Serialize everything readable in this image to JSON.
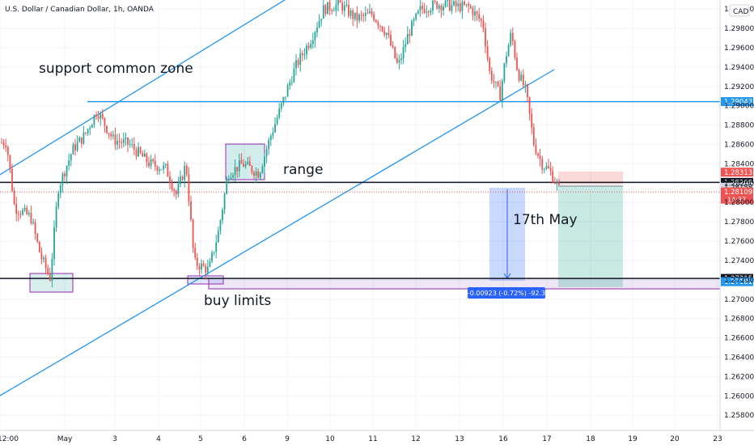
{
  "chart_data": {
    "type": "candlestick",
    "symbol_title": "U.S. Dollar / Canadian Dollar, 1h, OANDA",
    "currency_label": "CAD",
    "ylim": [
      1.2576,
      1.3006
    ],
    "y_ticks": [
      "1.25800",
      "1.26000",
      "1.26200",
      "1.26400",
      "1.26600",
      "1.26800",
      "1.27000",
      "1.27200",
      "1.27400",
      "1.27600",
      "1.27800",
      "1.28000",
      "1.28200",
      "1.28400",
      "1.28600",
      "1.28800",
      "1.29000",
      "1.29200",
      "1.29400",
      "1.29600",
      "1.29800",
      "1.30000"
    ],
    "x_ticks": [
      "12:00",
      "May",
      "3",
      "4",
      "5",
      "6",
      "9",
      "10",
      "11",
      "12",
      "13",
      "16",
      "17",
      "18",
      "19",
      "20",
      "23"
    ],
    "price_tags": [
      {
        "label": "1.29043",
        "value": 1.29043,
        "color": "#2196f3"
      },
      {
        "label": "1.28313",
        "value": 1.28313,
        "color": "#ef5350"
      },
      {
        "label": "1.28208",
        "value": 1.28208,
        "color": "#131722"
      },
      {
        "label": "1.28158",
        "value": 1.28158,
        "color": "#d1d4dc",
        "text_color": "#131722"
      },
      {
        "label": "1.28109",
        "value": 1.28109,
        "color": "#ef5350",
        "sublabel": "14:37"
      },
      {
        "label": "1.27215",
        "value": 1.27215,
        "color": "#131722"
      },
      {
        "label": "1.27181",
        "value": 1.27181,
        "color": "#2196f3"
      }
    ],
    "horizontal_levels": [
      {
        "value": 1.29043,
        "color": "#2196f3"
      },
      {
        "value": 1.28208,
        "color": "#131722"
      },
      {
        "value": 1.27215,
        "color": "#131722"
      }
    ],
    "annotations": {
      "support": "support common zone",
      "range": "range",
      "date_note": "17th May",
      "buy_limits": "buy limits",
      "measure": "-0.00923 (-0.72%) -92.3"
    },
    "anchors": [
      {
        "x": 8,
        "y": 1.2862
      },
      {
        "x": 18,
        "y": 1.2795
      },
      {
        "x": 38,
        "y": 1.2785
      },
      {
        "x": 50,
        "y": 1.2745
      },
      {
        "x": 62,
        "y": 1.2722
      },
      {
        "x": 72,
        "y": 1.2815
      },
      {
        "x": 90,
        "y": 1.2855
      },
      {
        "x": 105,
        "y": 1.287
      },
      {
        "x": 120,
        "y": 1.2895
      },
      {
        "x": 140,
        "y": 1.2865
      },
      {
        "x": 160,
        "y": 1.286
      },
      {
        "x": 185,
        "y": 1.284
      },
      {
        "x": 205,
        "y": 1.2835
      },
      {
        "x": 218,
        "y": 1.2808
      },
      {
        "x": 230,
        "y": 1.284
      },
      {
        "x": 240,
        "y": 1.2738
      },
      {
        "x": 258,
        "y": 1.273
      },
      {
        "x": 270,
        "y": 1.277
      },
      {
        "x": 282,
        "y": 1.283
      },
      {
        "x": 300,
        "y": 1.284
      },
      {
        "x": 320,
        "y": 1.283
      },
      {
        "x": 335,
        "y": 1.287
      },
      {
        "x": 350,
        "y": 1.2905
      },
      {
        "x": 365,
        "y": 1.294
      },
      {
        "x": 385,
        "y": 1.297
      },
      {
        "x": 400,
        "y": 1.3
      },
      {
        "x": 420,
        "y": 1.3005
      },
      {
        "x": 440,
        "y": 1.299
      },
      {
        "x": 460,
        "y": 1.2995
      },
      {
        "x": 478,
        "y": 1.2975
      },
      {
        "x": 492,
        "y": 1.294
      },
      {
        "x": 505,
        "y": 1.2975
      },
      {
        "x": 520,
        "y": 1.3
      },
      {
        "x": 540,
        "y": 1.3005
      },
      {
        "x": 560,
        "y": 1.3003
      },
      {
        "x": 580,
        "y": 1.3002
      },
      {
        "x": 597,
        "y": 1.2985
      },
      {
        "x": 605,
        "y": 1.2935
      },
      {
        "x": 618,
        "y": 1.291
      },
      {
        "x": 625,
        "y": 1.295
      },
      {
        "x": 632,
        "y": 1.2975
      },
      {
        "x": 640,
        "y": 1.2935
      },
      {
        "x": 650,
        "y": 1.2915
      },
      {
        "x": 660,
        "y": 1.286
      },
      {
        "x": 670,
        "y": 1.284
      },
      {
        "x": 680,
        "y": 1.2832
      },
      {
        "x": 692,
        "y": 1.2812
      }
    ]
  }
}
